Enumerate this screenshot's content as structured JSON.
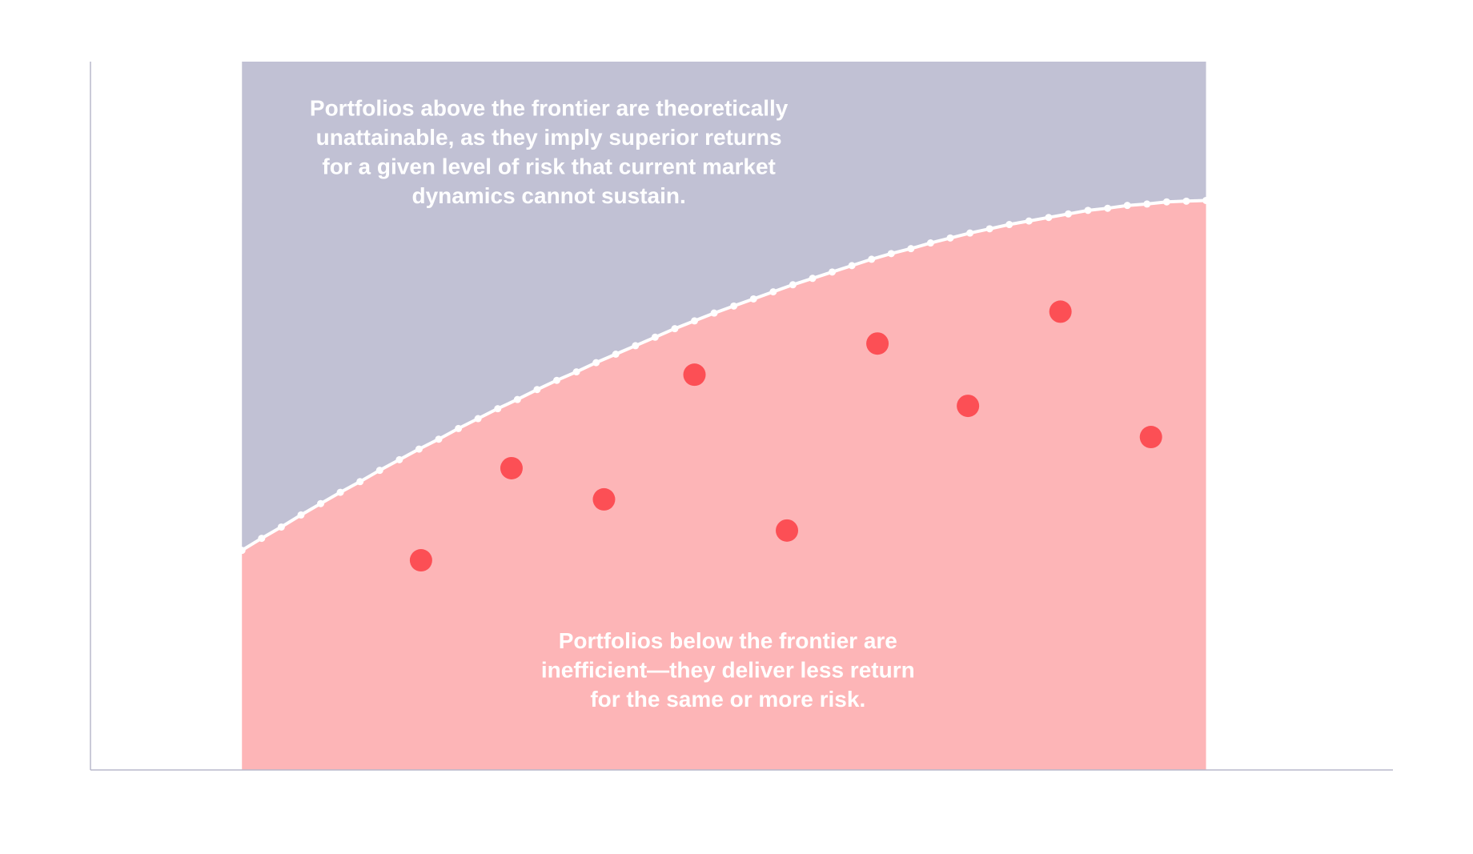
{
  "chart_data": {
    "type": "scatter",
    "xlim": [
      -7.7,
      58.5
    ],
    "ylim": [
      0,
      100
    ],
    "axis_color": "#b8b8cc",
    "above_color": "#c1c1d4",
    "below_color": "#fdb5b7",
    "frontier": {
      "color": "#ffffff",
      "x": [
        0,
        1,
        2,
        3,
        4,
        5,
        6,
        7,
        8,
        9,
        10,
        11,
        12,
        13,
        14,
        15,
        16,
        17,
        18,
        19,
        20,
        21,
        22,
        23,
        24,
        25,
        26,
        27,
        28,
        29,
        30,
        31,
        32,
        33,
        34,
        35,
        36,
        37,
        38,
        39,
        40,
        41,
        42,
        43,
        44,
        45,
        46,
        47,
        48,
        49
      ],
      "y": [
        31.0,
        32.7,
        34.3,
        36.0,
        37.6,
        39.2,
        40.7,
        42.3,
        43.8,
        45.3,
        46.7,
        48.2,
        49.6,
        51.0,
        52.3,
        53.7,
        55.0,
        56.2,
        57.5,
        58.7,
        59.9,
        61.1,
        62.3,
        63.4,
        64.5,
        65.5,
        66.5,
        67.5,
        68.5,
        69.4,
        70.3,
        71.2,
        72.1,
        72.9,
        73.6,
        74.4,
        75.1,
        75.8,
        76.4,
        77.0,
        77.5,
        78.0,
        78.5,
        79.0,
        79.3,
        79.7,
        79.9,
        80.2,
        80.3,
        80.4
      ]
    },
    "points": {
      "color": "#fc4f55",
      "x": [
        9.1,
        13.7,
        18.4,
        23.0,
        27.7,
        32.3,
        36.9,
        41.6,
        46.2
      ],
      "y": [
        29.6,
        42.6,
        38.2,
        55.8,
        33.8,
        60.2,
        51.4,
        64.7,
        47.0
      ]
    },
    "annotations": [
      {
        "x": 15.6,
        "y": 93.2,
        "lines": [
          "Portfolios above the frontier are theoretically",
          "unattainable, as they imply superior returns",
          "for a given level of risk that current market",
          "dynamics cannot sustain."
        ]
      },
      {
        "x": 24.7,
        "y": 18.0,
        "lines": [
          "Portfolios below the frontier are",
          "inefficient—they deliver less return",
          "for the same or more risk."
        ]
      }
    ]
  }
}
